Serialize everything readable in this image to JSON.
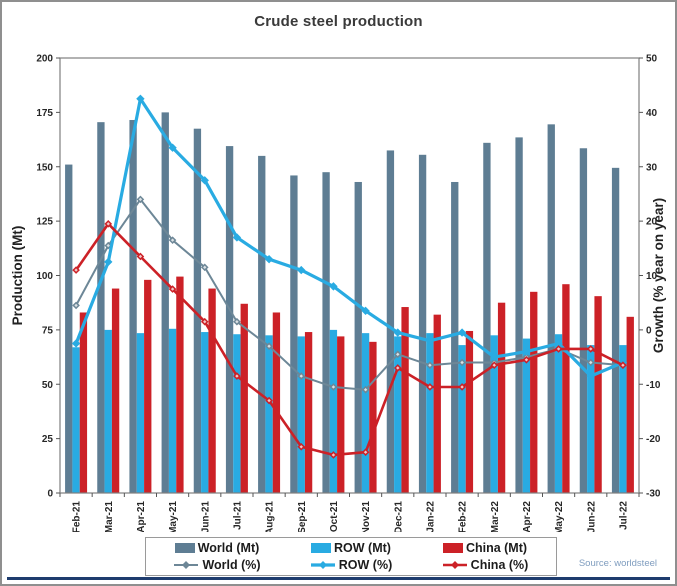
{
  "title": "Crude steel production",
  "source": "Source: worldsteel",
  "colors": {
    "world_bar": "#5e7d93",
    "row_bar": "#29abe2",
    "china_bar": "#cc2127",
    "axis_text": "#262626",
    "title_text": "#3a3a3a",
    "source_text": "#7f9dbf",
    "plot_border": "#7f7f7f",
    "bottom_rule": "#1e3c6e"
  },
  "chart_data": {
    "type": "bar+line combo",
    "title": "Crude steel production",
    "categories": [
      "Feb-21",
      "Mar-21",
      "Apr-21",
      "May-21",
      "Jun-21",
      "Jul-21",
      "Aug-21",
      "Sep-21",
      "Oct-21",
      "Nov-21",
      "Dec-21",
      "Jan-22",
      "Feb-22",
      "Mar-22",
      "Apr-22",
      "May-22",
      "Jun-22",
      "Jul-22"
    ],
    "left_axis": {
      "label": "Production (Mt)",
      "min": 0,
      "max": 200,
      "ticks": [
        0,
        25,
        50,
        75,
        100,
        125,
        150,
        175,
        200
      ]
    },
    "right_axis": {
      "label": "Growth (% year on year)",
      "min": -30,
      "max": 50,
      "ticks": [
        -30,
        -20,
        -10,
        0,
        10,
        20,
        30,
        40,
        50
      ]
    },
    "grid": false,
    "legend_position": "bottom",
    "bar_series": [
      {
        "name": "World (Mt)",
        "axis": "left",
        "color": "#5e7d93",
        "values": [
          151,
          170.5,
          171.5,
          175,
          167.5,
          159.5,
          155,
          146,
          147.5,
          143,
          157.5,
          155.5,
          143,
          161,
          163.5,
          169.5,
          158.5,
          149.5
        ]
      },
      {
        "name": "ROW (Mt)",
        "axis": "left",
        "color": "#29abe2",
        "values": [
          67,
          75,
          73.5,
          75.5,
          74,
          73,
          72.5,
          72,
          75,
          73.5,
          72,
          73.5,
          68,
          72.5,
          71,
          73,
          68,
          68
        ]
      },
      {
        "name": "China (Mt)",
        "axis": "left",
        "color": "#cc2127",
        "values": [
          83,
          94,
          98,
          99.5,
          94,
          87,
          83,
          74,
          72,
          69.5,
          85.5,
          82,
          74.5,
          87.5,
          92.5,
          96,
          90.5,
          81
        ]
      }
    ],
    "line_series": [
      {
        "name": "World (%)",
        "axis": "right",
        "color": "#6d8797",
        "width": 2,
        "marker": "open-diamond",
        "values": [
          4.5,
          15.5,
          24,
          16.5,
          11.5,
          1.5,
          -3,
          -8.5,
          -10.5,
          -11,
          -4.5,
          -6.5,
          -6,
          -6,
          -5,
          -3.5,
          -6,
          -6.5
        ]
      },
      {
        "name": "ROW (%)",
        "axis": "right",
        "color": "#29abe2",
        "width": 3.2,
        "marker": "diamond",
        "values": [
          -2.5,
          12.5,
          42.5,
          33.5,
          27.5,
          17,
          13,
          11,
          8,
          3.5,
          -0.5,
          -2,
          -0.5,
          -5,
          -4,
          -2.5,
          -8.5,
          -6
        ]
      },
      {
        "name": "China (%)",
        "axis": "right",
        "color": "#cc2127",
        "width": 2.6,
        "marker": "open-diamond",
        "values": [
          11,
          19.5,
          13.5,
          7.5,
          1.5,
          -8.5,
          -13,
          -21.5,
          -23,
          -22.5,
          -7,
          -10.5,
          -10.5,
          -6.5,
          -5.5,
          -3.5,
          -3.5,
          -6.5
        ]
      }
    ]
  },
  "legend": {
    "bar_labels": [
      "World (Mt)",
      "ROW (Mt)",
      "China (Mt)"
    ],
    "line_labels": [
      "World (%)",
      "ROW (%)",
      "China (%)"
    ]
  }
}
